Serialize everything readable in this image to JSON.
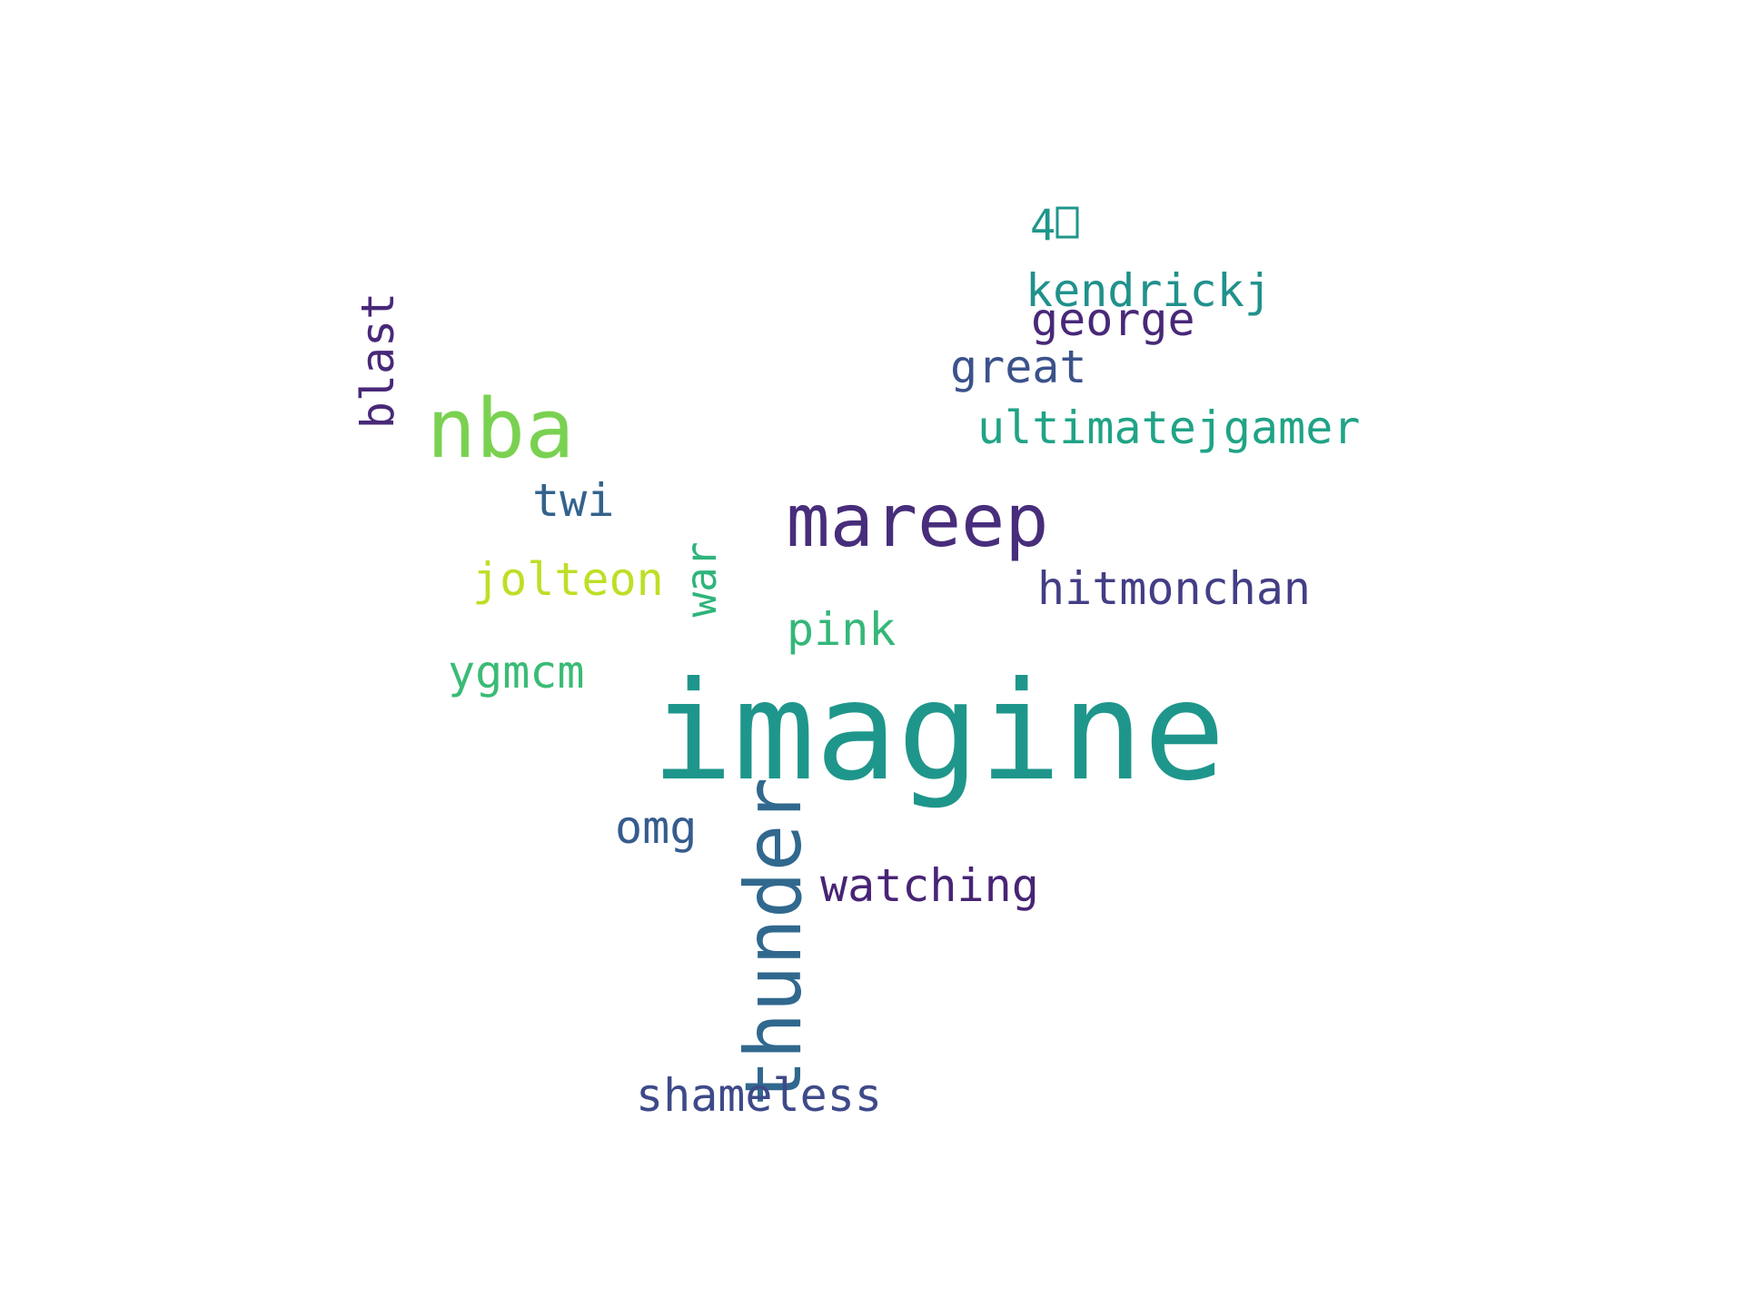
{
  "words": [
    {
      "text": "imagine",
      "color": "#1f968b",
      "rotated": false
    },
    {
      "text": "thunder",
      "color": "#31688e",
      "rotated": true
    },
    {
      "text": "mareep",
      "color": "#472d7b",
      "rotated": false
    },
    {
      "text": "nba",
      "color": "#7ad151",
      "rotated": false
    },
    {
      "text": "blast",
      "color": "#482878",
      "rotated": true
    },
    {
      "text": "4",
      "color": "#1f968b",
      "rotated": false
    },
    {
      "text": "kendrickj",
      "color": "#21918c",
      "rotated": false
    },
    {
      "text": "george",
      "color": "#482878",
      "rotated": false
    },
    {
      "text": "great",
      "color": "#3b528b",
      "rotated": false
    },
    {
      "text": "ultimatejgamer",
      "color": "#20a386",
      "rotated": false
    },
    {
      "text": "twi",
      "color": "#33638d",
      "rotated": false
    },
    {
      "text": "hitmonchan",
      "color": "#433e85",
      "rotated": false
    },
    {
      "text": "jolteon",
      "color": "#bddf26",
      "rotated": false
    },
    {
      "text": "war",
      "color": "#2fb47c",
      "rotated": true
    },
    {
      "text": "pink",
      "color": "#35b779",
      "rotated": false
    },
    {
      "text": "ygmcm",
      "color": "#3bbb75",
      "rotated": false
    },
    {
      "text": "omg",
      "color": "#365c8d",
      "rotated": false
    },
    {
      "text": "watching",
      "color": "#482475",
      "rotated": false
    },
    {
      "text": "shameless",
      "color": "#3e4a89",
      "rotated": false
    }
  ]
}
